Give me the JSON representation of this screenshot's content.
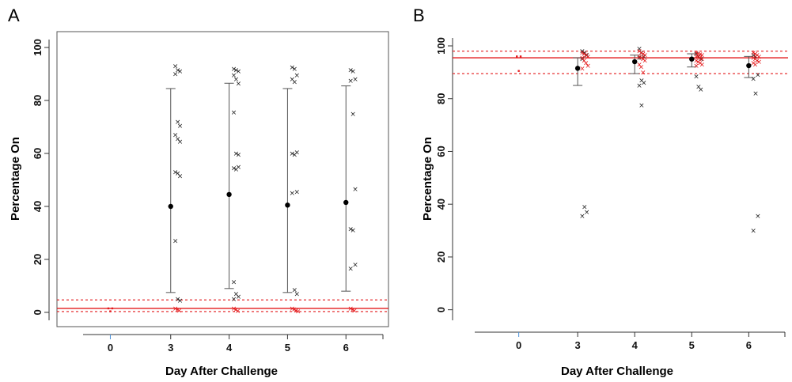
{
  "chart_data": [
    {
      "panel": "A",
      "type": "scatter",
      "xlabel": "Day After Challenge",
      "ylabel": "Percentage On",
      "x_ticks": [
        "0",
        "3",
        "4",
        "5",
        "6"
      ],
      "y_ticks": [
        0,
        20,
        40,
        60,
        80,
        100
      ],
      "xlim": [
        -0.7,
        7.0
      ],
      "ylim": [
        -3,
        103
      ],
      "positions": {
        "0": 0,
        "3": 1.55,
        "4": 3.05,
        "5": 4.55,
        "6": 6.05
      },
      "reference": {
        "mean": 1.5,
        "lower": 0.3,
        "upper": 4.7,
        "color": "#e41a1c"
      },
      "baseline_points": [
        {
          "x": -0.05,
          "y": 1.5
        },
        {
          "x": 0.05,
          "y": 1.5
        },
        {
          "x": 0.0,
          "y": 0.4
        }
      ],
      "groups": [
        {
          "day": "3",
          "mean": 40,
          "err_low": 7.5,
          "err_high": 84.5,
          "black": [
            93,
            91.5,
            91,
            90,
            72,
            70.5,
            67,
            65.5,
            64.5,
            53,
            52.5,
            51.5,
            27,
            5,
            4.5
          ],
          "red": [
            1.5,
            1.0,
            0.8
          ]
        },
        {
          "day": "4",
          "mean": 44.5,
          "err_low": 9,
          "err_high": 86.5,
          "black": [
            92,
            91.5,
            91,
            89.5,
            88,
            86.5,
            75.5,
            60,
            59.5,
            54.5,
            54,
            55,
            11.5,
            7,
            6,
            5
          ],
          "red": [
            1.5,
            1.0,
            0.6
          ]
        },
        {
          "day": "5",
          "mean": 40.5,
          "err_low": 7.5,
          "err_high": 84.5,
          "black": [
            92.5,
            92,
            89.5,
            88,
            87,
            60.5,
            60,
            59.5,
            45.5,
            45,
            8.5,
            7
          ],
          "red": [
            1.5,
            1.2,
            0.8,
            0.5
          ]
        },
        {
          "day": "6",
          "mean": 41.5,
          "err_low": 8,
          "err_high": 85.5,
          "black": [
            91.5,
            91,
            88,
            87.5,
            75,
            46.5,
            31.5,
            31,
            18,
            16.5
          ],
          "red": [
            1.5,
            1.0,
            0.7
          ]
        }
      ]
    },
    {
      "panel": "B",
      "type": "scatter",
      "xlabel": "Day After Challenge",
      "ylabel": "Percentage On",
      "x_ticks": [
        "0",
        "3",
        "4",
        "5",
        "6"
      ],
      "y_ticks": [
        0,
        20,
        40,
        60,
        80,
        100
      ],
      "xlim": [
        -0.7,
        7.0
      ],
      "ylim": [
        -4,
        103
      ],
      "positions": {
        "0": 0,
        "3": 1.55,
        "4": 3.05,
        "5": 4.55,
        "6": 6.05
      },
      "reference": {
        "mean": 95.5,
        "lower": 89.5,
        "upper": 98,
        "color": "#e41a1c"
      },
      "baseline_points": [
        {
          "x": -0.05,
          "y": 96
        },
        {
          "x": 0.05,
          "y": 96
        },
        {
          "x": 0.0,
          "y": 90.5
        }
      ],
      "groups": [
        {
          "day": "3",
          "mean": 91.5,
          "err_low": 85,
          "err_high": 95.5,
          "black": [
            98,
            97.5,
            96.5,
            95,
            39,
            37,
            35.5
          ],
          "red": [
            97.5,
            97,
            96.5,
            96,
            95.5,
            94.5,
            93.5,
            92.5,
            91.5
          ]
        },
        {
          "day": "4",
          "mean": 94,
          "err_low": 89.5,
          "err_high": 96.5,
          "black": [
            99,
            97.5,
            96,
            95.5,
            87,
            86,
            85,
            77.5
          ],
          "red": [
            98,
            97.5,
            97,
            96.5,
            96,
            95.5,
            95,
            94.5,
            93,
            92,
            90
          ]
        },
        {
          "day": "5",
          "mean": 95,
          "err_low": 92,
          "err_high": 97,
          "black": [
            97,
            96,
            95,
            88.5,
            84.5,
            83.5
          ],
          "red": [
            97.5,
            97,
            96.8,
            96.5,
            96,
            95.8,
            95.5,
            95,
            94.5,
            94,
            93.5,
            93,
            92.5
          ]
        },
        {
          "day": "6",
          "mean": 92.5,
          "err_low": 88,
          "err_high": 96,
          "black": [
            96.5,
            96,
            89,
            87.5,
            82,
            35.5,
            30
          ],
          "red": [
            97.5,
            97,
            96.5,
            96,
            95.5,
            95,
            94.5,
            94,
            93.5,
            93
          ]
        }
      ]
    }
  ]
}
